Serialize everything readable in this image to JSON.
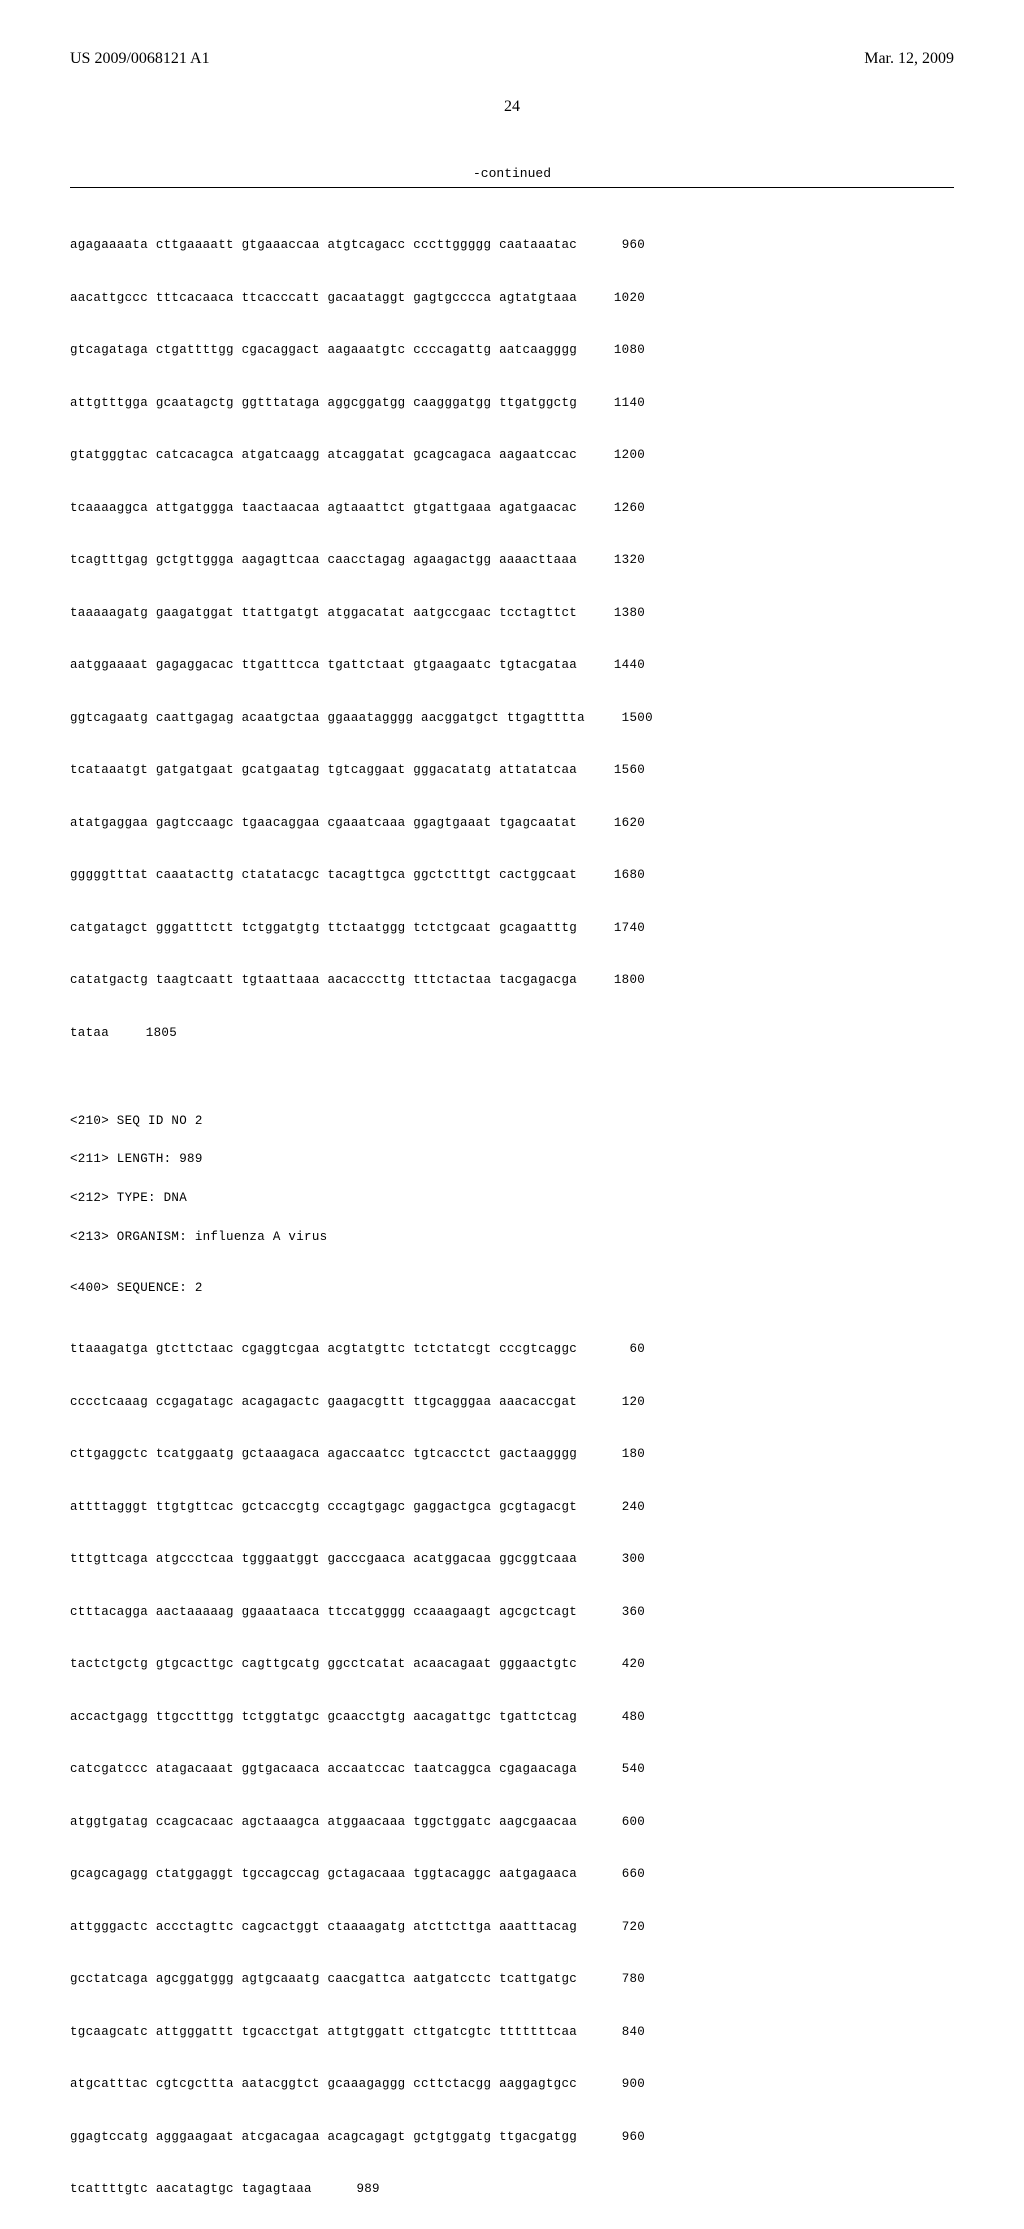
{
  "header": {
    "pub_number": "US 2009/0068121 A1",
    "pub_date": "Mar. 12, 2009"
  },
  "page_number": "24",
  "continued_label": "-continued",
  "seq1": {
    "rows": [
      {
        "text": "agagaaaata cttgaaaatt gtgaaaccaa atgtcagacc cccttggggg caataaatac",
        "num": "960"
      },
      {
        "text": "aacattgccc tttcacaaca ttcacccatt gacaataggt gagtgcccca agtatgtaaa",
        "num": "1020"
      },
      {
        "text": "gtcagataga ctgattttgg cgacaggact aagaaatgtc ccccagattg aatcaagggg",
        "num": "1080"
      },
      {
        "text": "attgtttgga gcaatagctg ggtttataga aggcggatgg caagggatgg ttgatggctg",
        "num": "1140"
      },
      {
        "text": "gtatgggtac catcacagca atgatcaagg atcaggatat gcagcagaca aagaatccac",
        "num": "1200"
      },
      {
        "text": "tcaaaaggca attgatggga taactaacaa agtaaattct gtgattgaaa agatgaacac",
        "num": "1260"
      },
      {
        "text": "tcagtttgag gctgttggga aagagttcaa caacctagag agaagactgg aaaacttaaa",
        "num": "1320"
      },
      {
        "text": "taaaaagatg gaagatggat ttattgatgt atggacatat aatgccgaac tcctagttct",
        "num": "1380"
      },
      {
        "text": "aatggaaaat gagaggacac ttgatttcca tgattctaat gtgaagaatc tgtacgataa",
        "num": "1440"
      },
      {
        "text": "ggtcagaatg caattgagag acaatgctaa ggaaatagggg aacggatgct ttgagtttta",
        "num": "1500"
      },
      {
        "text": "tcataaatgt gatgatgaat gcatgaatag tgtcaggaat gggacatatg attatatcaa",
        "num": "1560"
      },
      {
        "text": "atatgaggaa gagtccaagc tgaacaggaa cgaaatcaaa ggagtgaaat tgagcaatat",
        "num": "1620"
      },
      {
        "text": "gggggtttat caaatacttg ctatatacgc tacagttgca ggctctttgt cactggcaat",
        "num": "1680"
      },
      {
        "text": "catgatagct gggatttctt tctggatgtg ttctaatggg tctctgcaat gcagaatttg",
        "num": "1740"
      },
      {
        "text": "catatgactg taagtcaatt tgtaattaaa aacacccttg tttctactaa tacgagacga",
        "num": "1800"
      },
      {
        "text": "tataa",
        "num": "1805"
      }
    ]
  },
  "seq2_meta": {
    "line1": "<210> SEQ ID NO 2",
    "line2": "<211> LENGTH: 989",
    "line3": "<212> TYPE: DNA",
    "line4": "<213> ORGANISM: influenza A virus"
  },
  "seq2_label": "<400> SEQUENCE: 2",
  "seq2": {
    "rows": [
      {
        "text": "ttaaagatga gtcttctaac cgaggtcgaa acgtatgttc tctctatcgt cccgtcaggc",
        "num": "60"
      },
      {
        "text": "cccctcaaag ccgagatagc acagagactc gaagacgttt ttgcagggaa aaacaccgat",
        "num": "120"
      },
      {
        "text": "cttgaggctc tcatggaatg gctaaagaca agaccaatcc tgtcacctct gactaagggg",
        "num": "180"
      },
      {
        "text": "attttagggt ttgtgttcac gctcaccgtg cccagtgagc gaggactgca gcgtagacgt",
        "num": "240"
      },
      {
        "text": "tttgttcaga atgccctcaa tgggaatggt gacccgaaca acatggacaa ggcggtcaaa",
        "num": "300"
      },
      {
        "text": "ctttacagga aactaaaaag ggaaataaca ttccatgggg ccaaagaagt agcgctcagt",
        "num": "360"
      },
      {
        "text": "tactctgctg gtgcacttgc cagttgcatg ggcctcatat acaacagaat gggaactgtc",
        "num": "420"
      },
      {
        "text": "accactgagg ttgcctttgg tctggtatgc gcaacctgtg aacagattgc tgattctcag",
        "num": "480"
      },
      {
        "text": "catcgatccc atagacaaat ggtgacaaca accaatccac taatcaggca cgagaacaga",
        "num": "540"
      },
      {
        "text": "atggtgatag ccagcacaac agctaaagca atggaacaaa tggctggatc aagcgaacaa",
        "num": "600"
      },
      {
        "text": "gcagcagagg ctatggaggt tgccagccag gctagacaaa tggtacaggc aatgagaaca",
        "num": "660"
      },
      {
        "text": "attgggactc accctagttc cagcactggt ctaaaagatg atcttcttga aaatttacag",
        "num": "720"
      },
      {
        "text": "gcctatcaga agcggatggg agtgcaaatg caacgattca aatgatcctc tcattgatgc",
        "num": "780"
      },
      {
        "text": "tgcaagcatc attgggattt tgcacctgat attgtggatt cttgatcgtc tttttttcaa",
        "num": "840"
      },
      {
        "text": "atgcatttac cgtcgcttta aatacggtct gcaaagaggg ccttctacgg aaggagtgcc",
        "num": "900"
      },
      {
        "text": "ggagtccatg agggaagaat atcgacagaa acagcagagt gctgtggatg ttgacgatgg",
        "num": "960"
      },
      {
        "text": "tcattttgtc aacatagtgc tagagtaaa",
        "num": "989"
      }
    ]
  }
}
